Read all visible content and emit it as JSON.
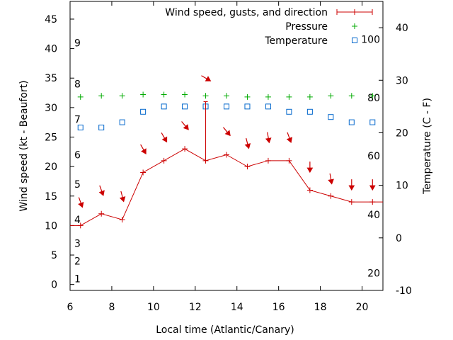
{
  "chart_data": {
    "type": "line",
    "xlabel": "Local time (Atlantic/Canary)",
    "ylabel_left": "Wind speed (kt - Beaufort)",
    "ylabel_right": "Temperature (C - F)",
    "xlim": [
      6,
      21
    ],
    "ylim_left": [
      -1,
      48
    ],
    "ylim_right": [
      -10,
      45
    ],
    "x_ticks": [
      6,
      8,
      10,
      12,
      14,
      16,
      18,
      20
    ],
    "y_left_ticks": [
      0,
      5,
      10,
      15,
      20,
      25,
      30,
      35,
      40,
      45
    ],
    "y_right_ticks": [
      -10,
      0,
      10,
      20,
      30,
      40
    ],
    "beaufort_labels": [
      {
        "label": "1",
        "kt": 1
      },
      {
        "label": "2",
        "kt": 4
      },
      {
        "label": "3",
        "kt": 7
      },
      {
        "label": "4",
        "kt": 11
      },
      {
        "label": "5",
        "kt": 17
      },
      {
        "label": "6",
        "kt": 22
      },
      {
        "label": "7",
        "kt": 28
      },
      {
        "label": "8",
        "kt": 34
      },
      {
        "label": "9",
        "kt": 41
      }
    ],
    "fahrenheit_labels": [
      {
        "label": "20",
        "celsius": -6.7
      },
      {
        "label": "40",
        "celsius": 4.4
      },
      {
        "label": "60",
        "celsius": 15.6
      },
      {
        "label": "80",
        "celsius": 26.7
      },
      {
        "label": "100",
        "celsius": 37.8
      }
    ],
    "legend": [
      {
        "label": "Wind speed, gusts, and direction",
        "marker": "line-plus"
      },
      {
        "label": "Pressure",
        "marker": "plus"
      },
      {
        "label": "Temperature",
        "marker": "square"
      }
    ],
    "legend_position": "top-right",
    "wind": {
      "name": "Wind speed, gusts, and direction",
      "color": "#cc0000",
      "x": [
        6.5,
        7.5,
        8.5,
        9.5,
        10.5,
        11.5,
        12.5,
        13.5,
        14.5,
        15.5,
        16.5,
        17.5,
        18.5,
        19.5,
        20.5
      ],
      "speed_kt": [
        10,
        12,
        11,
        19,
        21,
        23,
        21,
        22,
        20,
        21,
        21,
        16,
        15,
        14,
        14
      ],
      "step_end_x": 21,
      "gusts": [
        {
          "x": 12.5,
          "kt": 31
        }
      ]
    },
    "wind_direction": {
      "color": "#cc0000",
      "x": [
        6.5,
        7.5,
        8.5,
        9.5,
        10.5,
        11.5,
        12.5,
        13.5,
        14.5,
        15.5,
        16.5,
        17.5,
        18.5,
        19.5,
        20.5
      ],
      "y_kt": [
        14,
        16,
        15,
        23,
        25,
        27,
        35,
        26,
        24,
        25,
        25,
        20,
        18,
        17,
        17
      ],
      "bearing_deg": [
        340,
        340,
        345,
        330,
        330,
        320,
        300,
        320,
        345,
        350,
        340,
        0,
        350,
        0,
        0
      ]
    },
    "pressure": {
      "name": "Pressure",
      "color": "#00aa00",
      "x": [
        6.5,
        7.5,
        8.5,
        9.5,
        10.5,
        11.5,
        12.5,
        13.5,
        14.5,
        15.5,
        16.5,
        17.5,
        18.5,
        19.5,
        20.5
      ],
      "y_kt": [
        31.8,
        32.0,
        32.0,
        32.2,
        32.2,
        32.2,
        32.0,
        32.0,
        31.8,
        31.8,
        31.8,
        31.8,
        32.0,
        32.0,
        32.0
      ]
    },
    "temperature": {
      "name": "Temperature",
      "color": "#0066cc",
      "x": [
        6.5,
        7.5,
        8.5,
        9.5,
        10.5,
        11.5,
        12.5,
        13.5,
        14.5,
        15.5,
        16.5,
        17.5,
        18.5,
        19.5,
        20.5
      ],
      "celsius": [
        21,
        21,
        22,
        24,
        25,
        25,
        25,
        25,
        25,
        25,
        24,
        24,
        23,
        22,
        22
      ]
    }
  }
}
